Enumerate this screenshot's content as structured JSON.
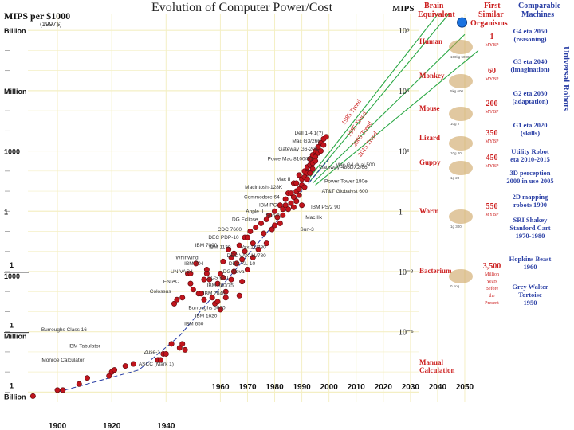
{
  "chart_data": {
    "type": "scatter",
    "title": "Evolution of Computer Power/Cost",
    "ylabel": "MIPS per $1000",
    "ylabel_note": "(1997$)",
    "y_tick_labels": [
      "Billion",
      "Million",
      "1000",
      "1",
      "1",
      "1000",
      "1",
      "Million",
      "1",
      "Billion"
    ],
    "x_ticks": [
      1900,
      1920,
      1940,
      1960,
      1970,
      1980,
      1990,
      2000,
      2010,
      2020,
      2030,
      2040,
      2050
    ],
    "x_range": [
      1895,
      2055
    ],
    "log10_range": [
      -9.5,
      9.8
    ],
    "mips_scale_label": "MIPS",
    "mips_scale_ticks": [
      "10⁹",
      "10⁶",
      "10³",
      "1",
      "10⁻³",
      "10⁻⁶"
    ],
    "trend_labels": [
      "1985 Trend",
      "1995 Trend",
      "2005 Trend",
      "2015 Trend"
    ],
    "machines": [
      {
        "name": "Dell 1-4.1(?)",
        "year": 1999,
        "log_value": 3.9
      },
      {
        "name": "Mac G3/266",
        "year": 1998,
        "log_value": 3.5
      },
      {
        "name": "Gateway G6-200",
        "year": 1997,
        "log_value": 3.1
      },
      {
        "name": "PowerMac 8100/80",
        "year": 1995,
        "log_value": 2.6
      },
      {
        "name": "Gateway-486DX2/66",
        "year": 1994,
        "log_value": 2.2
      },
      {
        "name": "Mac II",
        "year": 1987,
        "log_value": 1.6
      },
      {
        "name": "Macintosh-128K",
        "year": 1984,
        "log_value": 1.2
      },
      {
        "name": "Commodore 64",
        "year": 1983,
        "log_value": 0.7
      },
      {
        "name": "IBM PC",
        "year": 1982,
        "log_value": 0.3
      },
      {
        "name": "Apple II",
        "year": 1977,
        "log_value": 0.0
      },
      {
        "name": "Sun-2",
        "year": 1983,
        "log_value": -0.2
      },
      {
        "name": "DG Eclipse",
        "year": 1975,
        "log_value": -0.4
      },
      {
        "name": "CDC 7600",
        "year": 1969,
        "log_value": -0.9
      },
      {
        "name": "DEC PDP-10",
        "year": 1968,
        "log_value": -1.3
      },
      {
        "name": "IBM 7090",
        "year": 1960,
        "log_value": -1.7
      },
      {
        "name": "IBM 1130",
        "year": 1965,
        "log_value": -1.8
      },
      {
        "name": "Whirlwind",
        "year": 1953,
        "log_value": -2.3
      },
      {
        "name": "IBM 704",
        "year": 1955,
        "log_value": -2.6
      },
      {
        "name": "UNIVAC I",
        "year": 1951,
        "log_value": -3.0
      },
      {
        "name": "ENIAC",
        "year": 1946,
        "log_value": -3.5
      },
      {
        "name": "Colossus",
        "year": 1943,
        "log_value": -4.0
      },
      {
        "name": "Mac G4 dual 500",
        "year": 2000,
        "log_value": 2.3
      },
      {
        "name": "Power Tower 180e",
        "year": 1996,
        "log_value": 1.5
      },
      {
        "name": "AT&T Globalyst 600",
        "year": 1995,
        "log_value": 1.0
      },
      {
        "name": "IBM PS/2 90",
        "year": 1991,
        "log_value": 0.2
      },
      {
        "name": "Mac IIx",
        "year": 1989,
        "log_value": -0.3
      },
      {
        "name": "Sun-3",
        "year": 1987,
        "log_value": -0.9
      },
      {
        "name": "Vax 11/780",
        "year": 1978,
        "log_value": -1.8
      },
      {
        "name": "DEC VAX 11/780",
        "year": 1978,
        "log_value": -2.2
      },
      {
        "name": "DEC-KL-10",
        "year": 1974,
        "log_value": -2.6
      },
      {
        "name": "DG Nova",
        "year": 1970,
        "log_value": -3.0
      },
      {
        "name": "SDS 920",
        "year": 1964,
        "log_value": -3.3
      },
      {
        "name": "IBM 360/75",
        "year": 1966,
        "log_value": -3.7
      },
      {
        "name": "IBM 7040",
        "year": 1963,
        "log_value": -4.1
      },
      {
        "name": "Burroughs 5000",
        "year": 1963,
        "log_value": -4.8
      },
      {
        "name": "IBM 1620",
        "year": 1960,
        "log_value": -5.2
      },
      {
        "name": "IBM 650",
        "year": 1955,
        "log_value": -5.6
      },
      {
        "name": "Burroughs Class 16",
        "year": 1912,
        "log_value": -5.9
      },
      {
        "name": "IBM Tabulator",
        "year": 1917,
        "log_value": -6.7
      },
      {
        "name": "Monroe Calculator",
        "year": 1911,
        "log_value": -7.4
      },
      {
        "name": "Zuse-1",
        "year": 1939,
        "log_value": -7.0
      },
      {
        "name": "ASCC (Mark 1)",
        "year": 1944,
        "log_value": -7.6
      }
    ],
    "points": [
      [
        1891,
        -9.2
      ],
      [
        1900,
        -8.9
      ],
      [
        1902,
        -8.9
      ],
      [
        1908,
        -8.6
      ],
      [
        1911,
        -8.3
      ],
      [
        1919,
        -8.2
      ],
      [
        1920,
        -8.0
      ],
      [
        1921,
        -7.9
      ],
      [
        1925,
        -7.7
      ],
      [
        1928,
        -7.6
      ],
      [
        1937,
        -7.4
      ],
      [
        1938,
        -7.4
      ],
      [
        1939,
        -7.1
      ],
      [
        1940,
        -7.1
      ],
      [
        1942,
        -6.6
      ],
      [
        1945,
        -6.8
      ],
      [
        1946,
        -6.6
      ],
      [
        1947,
        -6.9
      ],
      [
        1943,
        -4.6
      ],
      [
        1944,
        -4.4
      ],
      [
        1946,
        -4.3
      ],
      [
        1948,
        -3.1
      ],
      [
        1949,
        -3.1
      ],
      [
        1949,
        -3.6
      ],
      [
        1950,
        -3.9
      ],
      [
        1951,
        -2.6
      ],
      [
        1952,
        -4.1
      ],
      [
        1953,
        -4.1
      ],
      [
        1954,
        -4.4
      ],
      [
        1954,
        -3.4
      ],
      [
        1955,
        -2.9
      ],
      [
        1955,
        -3.1
      ],
      [
        1956,
        -3.4
      ],
      [
        1957,
        -4.3
      ],
      [
        1958,
        -4.6
      ],
      [
        1959,
        -4.5
      ],
      [
        1959,
        -3.6
      ],
      [
        1960,
        -3.1
      ],
      [
        1960,
        -4.9
      ],
      [
        1961,
        -2.5
      ],
      [
        1961,
        -3.3
      ],
      [
        1962,
        -4.0
      ],
      [
        1962,
        -4.3
      ],
      [
        1963,
        -1.9
      ],
      [
        1964,
        -2.3
      ],
      [
        1964,
        -3.4
      ],
      [
        1965,
        -3.0
      ],
      [
        1965,
        -2.1
      ],
      [
        1966,
        -2.6
      ],
      [
        1967,
        -1.7
      ],
      [
        1967,
        -4.2
      ],
      [
        1968,
        -2.4
      ],
      [
        1968,
        -3.5
      ],
      [
        1969,
        -2.0
      ],
      [
        1969,
        -1.3
      ],
      [
        1970,
        -1.3
      ],
      [
        1970,
        -2.9
      ],
      [
        1971,
        -1.0
      ],
      [
        1972,
        -1.6
      ],
      [
        1972,
        -2.3
      ],
      [
        1973,
        -0.8
      ],
      [
        1974,
        -1.9
      ],
      [
        1975,
        -0.6
      ],
      [
        1976,
        -1.1
      ],
      [
        1977,
        -0.4
      ],
      [
        1977,
        -1.6
      ],
      [
        1978,
        -0.2
      ],
      [
        1979,
        -0.9
      ],
      [
        1980,
        -0.7
      ],
      [
        1980,
        0.0
      ],
      [
        1981,
        -0.3
      ],
      [
        1982,
        0.3
      ],
      [
        1982,
        -0.6
      ],
      [
        1983,
        0.1
      ],
      [
        1983,
        -0.2
      ],
      [
        1984,
        0.6
      ],
      [
        1984,
        0.3
      ],
      [
        1985,
        0.1
      ],
      [
        1985,
        0.9
      ],
      [
        1986,
        0.4
      ],
      [
        1986,
        0.9
      ],
      [
        1987,
        0.7
      ],
      [
        1987,
        1.4
      ],
      [
        1987,
        0.2
      ],
      [
        1988,
        0.5
      ],
      [
        1988,
        1.0
      ],
      [
        1988,
        1.4
      ],
      [
        1989,
        1.1
      ],
      [
        1989,
        0.8
      ],
      [
        1989,
        1.8
      ],
      [
        1990,
        1.3
      ],
      [
        1990,
        1.6
      ],
      [
        1990,
        0.3
      ],
      [
        1991,
        1.7
      ],
      [
        1991,
        2.0
      ],
      [
        1991,
        1.2
      ],
      [
        1992,
        1.6
      ],
      [
        1992,
        2.2
      ],
      [
        1992,
        1.9
      ],
      [
        1993,
        1.9
      ],
      [
        1993,
        2.3
      ],
      [
        1993,
        2.6
      ],
      [
        1994,
        2.1
      ],
      [
        1994,
        2.4
      ],
      [
        1994,
        2.8
      ],
      [
        1995,
        2.7
      ],
      [
        1995,
        2.5
      ],
      [
        1995,
        3.0
      ],
      [
        1996,
        2.9
      ],
      [
        1996,
        3.2
      ],
      [
        1997,
        3.0
      ],
      [
        1997,
        3.4
      ],
      [
        1998,
        3.3
      ],
      [
        1998,
        3.6
      ],
      [
        1999,
        3.7
      ]
    ],
    "first_similar_point": {
      "year": 2049,
      "log_value": 9.4
    }
  },
  "mips_header": "MIPS",
  "headers": {
    "brain_equivalent": "Brain Equivalent",
    "first_similar_organisms": "First Similar Organisms",
    "comparable_machines": "Comparable Machines"
  },
  "organisms": [
    {
      "name": "Human",
      "mybp": [
        "1",
        "MYBP"
      ],
      "caption": "100kg 50000"
    },
    {
      "name": "Monkey",
      "mybp": [
        "60",
        "MYBP"
      ],
      "caption": "5kg 600"
    },
    {
      "name": "Mouse",
      "mybp": [
        "200",
        "MYBP"
      ],
      "caption": "10g 2"
    },
    {
      "name": "Lizard",
      "mybp": [
        "350",
        "MYBP"
      ],
      "caption": "10g 20"
    },
    {
      "name": "Guppy",
      "mybp": [
        "450",
        "MYBP"
      ],
      "caption": "1g 20"
    },
    {
      "name": "Worm",
      "mybp": [
        "550",
        "MYBP"
      ],
      "caption": "1g 300"
    },
    {
      "name": "Bacterium",
      "mybp": [
        "3,500",
        "Million",
        "Years",
        "Before",
        "the",
        "Present"
      ],
      "caption": "0.1ng"
    },
    {
      "name": "Manual Calculation",
      "mybp": [],
      "caption": ""
    }
  ],
  "machines_right": [
    {
      "lines": [
        "G4 eta 2050",
        "(reasoning)"
      ],
      "color": "#2a3fa5"
    },
    {
      "lines": [
        "G3 eta 2040",
        "(imagination)"
      ],
      "color": "#2a3fa5"
    },
    {
      "lines": [
        "G2 eta 2030",
        "(adaptation)"
      ],
      "color": "#2a3fa5"
    },
    {
      "lines": [
        "G1 eta 2020",
        "(skills)"
      ],
      "color": "#2a3fa5"
    },
    {
      "lines": [
        "Utility Robot",
        "eta 2010-2015"
      ],
      "color": "#2a3fa5"
    },
    {
      "lines": [
        "3D perception",
        "2000 in use 2005"
      ],
      "color": "#2a3fa5"
    },
    {
      "lines": [
        "2D mapping",
        "robots 1990"
      ],
      "color": "#2a3fa5"
    },
    {
      "lines": [
        "SRI Shakey",
        "Stanford Cart",
        "1970-1980"
      ],
      "color": "#2a3fa5"
    },
    {
      "lines": [
        "Hopkins Beast",
        "1960"
      ],
      "color": "#2a3fa5"
    },
    {
      "lines": [
        "Grey Walter",
        "Tortoise",
        "1950"
      ],
      "color": "#2a3fa5"
    }
  ],
  "universal_robots_label": "Universal Robots",
  "colors": {
    "point": "#c0141c",
    "trend": "#2aa845",
    "accent_red": "#cc1f1f",
    "accent_blue": "#2a3fa5",
    "grid": "#f4efc4"
  }
}
